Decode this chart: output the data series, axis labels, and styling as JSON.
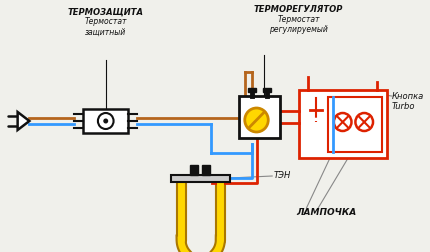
{
  "bg_color": "#f0f0eb",
  "title_termozashita": "ТЕРМОЗАЩИТА",
  "subtitle_termozashita": "Термостат\nзащитный",
  "title_termoregulyator": "ТЕРМОРЕГУЛЯТОР",
  "subtitle_termoregulyator": "Термостат\nрегулируемый",
  "label_ten": "ТЭН",
  "label_lampochka": "ЛАМПОЧКА",
  "label_knopka": "Кнопка\nTurbo",
  "color_brown": "#b5651d",
  "color_blue": "#3399ff",
  "color_red": "#dd2200",
  "color_black": "#111111",
  "color_yellow": "#FFD700",
  "color_orange": "#cc6600",
  "wire_lw": 2.0
}
